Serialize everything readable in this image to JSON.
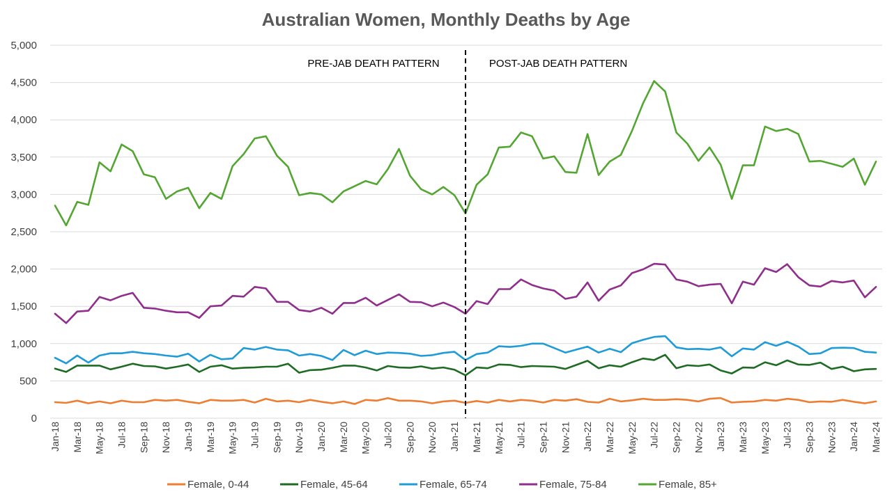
{
  "chart_data": {
    "type": "line",
    "title": "Australian Women, Monthly Deaths by Age",
    "xlabel": "",
    "ylabel": "",
    "ylim": [
      0,
      5000
    ],
    "yticks": [
      0,
      500,
      1000,
      1500,
      2000,
      2500,
      3000,
      3500,
      4000,
      4500,
      5000
    ],
    "ytick_labels": [
      "0",
      "500",
      "1,000",
      "1,500",
      "2,000",
      "2,500",
      "3,000",
      "3,500",
      "4,000",
      "4,500",
      "5,000"
    ],
    "grid": "horizontal",
    "legend_position": "bottom",
    "x": [
      "Jan-18",
      "Feb-18",
      "Mar-18",
      "Apr-18",
      "May-18",
      "Jun-18",
      "Jul-18",
      "Aug-18",
      "Sep-18",
      "Oct-18",
      "Nov-18",
      "Dec-18",
      "Jan-19",
      "Feb-19",
      "Mar-19",
      "Apr-19",
      "May-19",
      "Jun-19",
      "Jul-19",
      "Aug-19",
      "Sep-19",
      "Oct-19",
      "Nov-19",
      "Dec-19",
      "Jan-20",
      "Feb-20",
      "Mar-20",
      "Apr-20",
      "May-20",
      "Jun-20",
      "Jul-20",
      "Aug-20",
      "Sep-20",
      "Oct-20",
      "Nov-20",
      "Dec-20",
      "Jan-21",
      "Feb-21",
      "Mar-21",
      "Apr-21",
      "May-21",
      "Jun-21",
      "Jul-21",
      "Aug-21",
      "Sep-21",
      "Oct-21",
      "Nov-21",
      "Dec-21",
      "Jan-22",
      "Feb-22",
      "Mar-22",
      "Apr-22",
      "May-22",
      "Jun-22",
      "Jul-22",
      "Aug-22",
      "Sep-22",
      "Oct-22",
      "Nov-22",
      "Dec-22",
      "Jan-23",
      "Feb-23",
      "Mar-23",
      "Apr-23",
      "May-23",
      "Jun-23",
      "Jul-23",
      "Aug-23",
      "Sep-23",
      "Oct-23",
      "Nov-23",
      "Dec-23",
      "Jan-24",
      "Feb-24",
      "Mar-24"
    ],
    "xtick_labels": [
      "Jan-18",
      "Mar-18",
      "May-18",
      "Jul-18",
      "Sep-18",
      "Nov-18",
      "Jan-19",
      "Mar-19",
      "May-19",
      "Jul-19",
      "Sep-19",
      "Nov-19",
      "Jan-20",
      "Mar-20",
      "May-20",
      "Jul-20",
      "Sep-20",
      "Nov-20",
      "Jan-21",
      "Mar-21",
      "May-21",
      "Jul-21",
      "Sep-21",
      "Nov-21",
      "Jan-22",
      "Mar-22",
      "May-22",
      "Jul-22",
      "Sep-22",
      "Nov-22",
      "Jan-23",
      "Mar-23",
      "May-23",
      "Jul-23",
      "Sep-23",
      "Nov-23",
      "Jan-24",
      "Mar-24"
    ],
    "annotations": {
      "divider_month": "Feb-21",
      "left_label": "PRE-JAB DEATH PATTERN",
      "right_label": "POST-JAB DEATH PATTERN"
    },
    "series": [
      {
        "name": "Female, 0-44",
        "color": "#ED7D31",
        "values": [
          215,
          205,
          235,
          200,
          225,
          200,
          235,
          215,
          215,
          245,
          235,
          245,
          220,
          200,
          245,
          235,
          235,
          245,
          210,
          260,
          225,
          235,
          215,
          245,
          220,
          200,
          225,
          190,
          245,
          235,
          270,
          235,
          235,
          225,
          200,
          225,
          235,
          205,
          230,
          210,
          245,
          225,
          245,
          235,
          210,
          245,
          235,
          255,
          220,
          210,
          260,
          225,
          240,
          260,
          245,
          245,
          255,
          245,
          225,
          260,
          270,
          210,
          220,
          225,
          245,
          235,
          260,
          245,
          215,
          225,
          220,
          245,
          220,
          200,
          225
        ]
      },
      {
        "name": "Female, 45-64",
        "color": "#1E6B24",
        "values": [
          665,
          620,
          705,
          705,
          705,
          655,
          690,
          730,
          700,
          695,
          665,
          690,
          720,
          620,
          690,
          710,
          665,
          675,
          680,
          690,
          690,
          730,
          610,
          645,
          650,
          675,
          705,
          705,
          680,
          640,
          700,
          680,
          675,
          695,
          665,
          680,
          650,
          575,
          680,
          670,
          720,
          715,
          685,
          700,
          695,
          690,
          660,
          715,
          770,
          670,
          710,
          690,
          750,
          800,
          780,
          850,
          670,
          710,
          700,
          720,
          640,
          600,
          680,
          675,
          750,
          710,
          775,
          720,
          715,
          745,
          660,
          690,
          630,
          655,
          660
        ]
      },
      {
        "name": "Female, 65-74",
        "color": "#1F9BD7",
        "values": [
          810,
          735,
          840,
          745,
          840,
          870,
          870,
          890,
          870,
          860,
          840,
          825,
          865,
          760,
          850,
          790,
          800,
          940,
          920,
          955,
          920,
          910,
          840,
          860,
          835,
          780,
          915,
          845,
          905,
          860,
          880,
          875,
          865,
          835,
          845,
          875,
          890,
          780,
          860,
          880,
          965,
          955,
          970,
          1000,
          1000,
          940,
          880,
          920,
          960,
          880,
          930,
          885,
          1005,
          1050,
          1090,
          1100,
          950,
          925,
          930,
          920,
          950,
          830,
          935,
          920,
          1020,
          970,
          1025,
          960,
          860,
          870,
          940,
          945,
          940,
          890,
          880
        ]
      },
      {
        "name": "Female, 75-84",
        "color": "#8F2E8C",
        "values": [
          1400,
          1275,
          1430,
          1440,
          1625,
          1580,
          1640,
          1680,
          1480,
          1470,
          1440,
          1420,
          1420,
          1345,
          1500,
          1510,
          1640,
          1630,
          1760,
          1740,
          1560,
          1560,
          1450,
          1430,
          1480,
          1400,
          1545,
          1545,
          1615,
          1510,
          1585,
          1660,
          1560,
          1555,
          1500,
          1550,
          1490,
          1400,
          1570,
          1530,
          1730,
          1730,
          1860,
          1785,
          1740,
          1710,
          1600,
          1630,
          1820,
          1575,
          1725,
          1780,
          1945,
          1995,
          2070,
          2060,
          1860,
          1830,
          1770,
          1790,
          1800,
          1540,
          1830,
          1790,
          2010,
          1960,
          2065,
          1890,
          1780,
          1765,
          1840,
          1820,
          1845,
          1620,
          1760
        ]
      },
      {
        "name": "Female, 85+",
        "color": "#53A632",
        "values": [
          2850,
          2585,
          2900,
          2860,
          3430,
          3310,
          3670,
          3580,
          3270,
          3230,
          2940,
          3040,
          3090,
          2815,
          3020,
          2940,
          3380,
          3540,
          3750,
          3780,
          3520,
          3370,
          2990,
          3020,
          3000,
          2895,
          3040,
          3110,
          3180,
          3135,
          3340,
          3610,
          3250,
          3070,
          3000,
          3100,
          2990,
          2745,
          3130,
          3270,
          3630,
          3640,
          3830,
          3780,
          3480,
          3510,
          3300,
          3290,
          3810,
          3260,
          3440,
          3530,
          3850,
          4220,
          4520,
          4380,
          3830,
          3680,
          3450,
          3630,
          3400,
          2940,
          3390,
          3390,
          3910,
          3850,
          3880,
          3810,
          3440,
          3450,
          3410,
          3370,
          3480,
          3130,
          3440
        ]
      }
    ]
  }
}
